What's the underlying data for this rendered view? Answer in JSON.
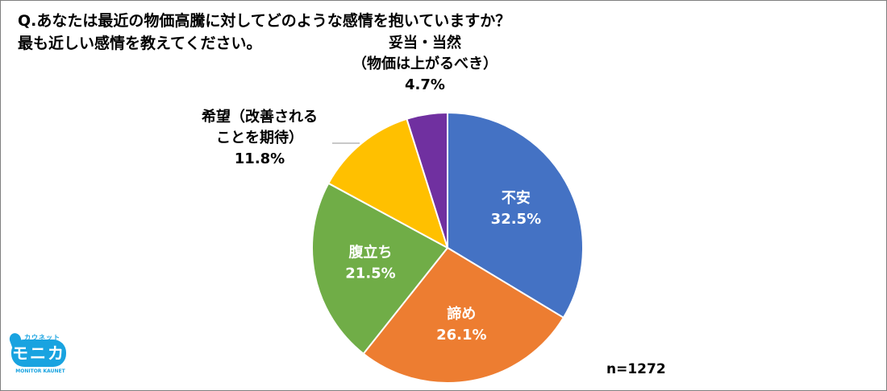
{
  "title_lines": [
    "Q.あなたは最近の物価高騰に対してどのような感情を抱いていますか？",
    "最も近しい感情を教えてください。"
  ],
  "n_label": "n=1272",
  "logo": {
    "top_text": "カウネット",
    "main_text": "モニカ",
    "sub_text": "MONITOR KAUNET",
    "color": "#19a3e0"
  },
  "chart_data": {
    "type": "pie",
    "start_angle_deg": 0,
    "direction": "clockwise",
    "slices": [
      {
        "name_lines": [
          "不安"
        ],
        "value": 32.5,
        "value_label": "32.5%",
        "color": "#4472c4",
        "label_position": "inside",
        "text_color": "#ffffff"
      },
      {
        "name_lines": [
          "諦め"
        ],
        "value": 26.1,
        "value_label": "26.1%",
        "color": "#ed7d31",
        "label_position": "inside",
        "text_color": "#ffffff"
      },
      {
        "name_lines": [
          "腹立ち"
        ],
        "value": 21.5,
        "value_label": "21.5%",
        "color": "#70ad47",
        "label_position": "inside",
        "text_color": "#ffffff"
      },
      {
        "name_lines": [
          "希望（改善される",
          "ことを期待）"
        ],
        "value": 11.8,
        "value_label": "11.8%",
        "color": "#ffc000",
        "label_position": "outside",
        "text_color": "#000000",
        "leader_line": true
      },
      {
        "name_lines": [
          "妥当・当然",
          "（物価は上がるべき）"
        ],
        "value": 4.7,
        "value_label": "4.7%",
        "color": "#7030a0",
        "label_position": "outside",
        "text_color": "#000000",
        "leader_line": false
      }
    ]
  }
}
